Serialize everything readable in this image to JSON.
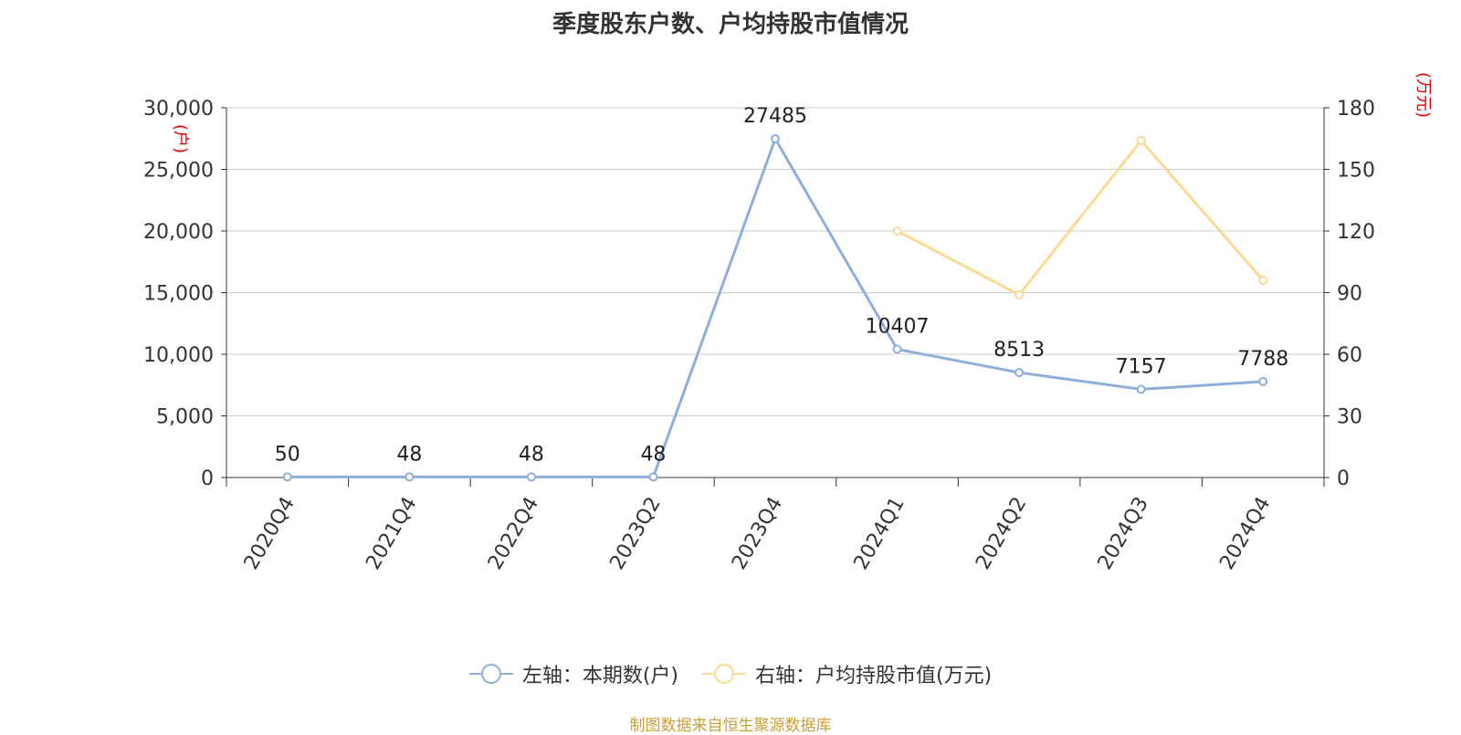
{
  "colors": {
    "left_series": "#8eaedc",
    "right_series": "#fcd994",
    "axis_unit": "#e00000",
    "grid": "#cccccc",
    "axis": "#333333",
    "source": "#c8a035"
  },
  "source_text": "制图数据来自恒生聚源数据库",
  "chart_data": {
    "type": "line",
    "title": "季度股东户数、户均持股市值情况",
    "categories": [
      "2020Q4",
      "2021Q4",
      "2022Q4",
      "2023Q2",
      "2023Q4",
      "2024Q1",
      "2024Q2",
      "2024Q3",
      "2024Q4"
    ],
    "left_axis": {
      "unit": "(户)",
      "ylim": [
        0,
        30000
      ],
      "ticks": [
        "0",
        "5,000",
        "10,000",
        "15,000",
        "20,000",
        "25,000",
        "30,000"
      ]
    },
    "right_axis": {
      "unit": "(万元)",
      "ylim": [
        0,
        180
      ],
      "ticks": [
        "0",
        "30",
        "60",
        "90",
        "120",
        "150",
        "180"
      ]
    },
    "grid": true,
    "legend_position": "bottom",
    "series": [
      {
        "name": "左轴：本期数(户)",
        "axis": "left",
        "color": "#8eaedc",
        "values": [
          50,
          48,
          48,
          48,
          27485,
          10407,
          8513,
          7157,
          7788
        ],
        "labels": [
          "50",
          "48",
          "48",
          "48",
          "27485",
          "10407",
          "8513",
          "7157",
          "7788"
        ]
      },
      {
        "name": "右轴：户均持股市值(万元)",
        "axis": "right",
        "color": "#fcd994",
        "values": [
          null,
          null,
          null,
          null,
          null,
          120,
          89,
          164,
          96
        ]
      }
    ]
  }
}
